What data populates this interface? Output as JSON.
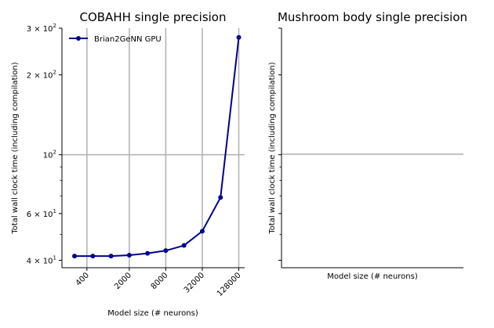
{
  "chart_data": [
    {
      "type": "line",
      "title": "COBAHH single precision",
      "xlabel": "Model size (# neurons)",
      "ylabel": "Total wall clock time (including compilation)",
      "xscale": "log",
      "yscale": "log",
      "xlim": [
        155,
        160000
      ],
      "ylim": [
        37.5,
        300
      ],
      "grid": "major",
      "x_ticks": [
        400,
        2000,
        8000,
        32000,
        128000
      ],
      "x_tick_labels": [
        "400",
        "2000",
        "8000",
        "32000",
        "128000"
      ],
      "y_ticks": [
        40,
        60,
        100,
        200,
        300
      ],
      "y_tick_labels": [
        {
          "base": "4",
          "cross": true,
          "exp": "1"
        },
        {
          "base": "6",
          "cross": true,
          "exp": "1"
        },
        {
          "base": "10",
          "cross": false,
          "exp": "2"
        },
        {
          "base": "2",
          "cross": true,
          "exp": "2"
        },
        {
          "base": "3",
          "cross": true,
          "exp": "2"
        }
      ],
      "legend": {
        "placement": "upper-left"
      },
      "series": [
        {
          "name": "Brian2GeNN GPU",
          "color": "#00008b",
          "x": [
            250,
            500,
            1000,
            2000,
            4000,
            8000,
            16000,
            32000,
            64000,
            128000
          ],
          "values": [
            41.5,
            41.5,
            41.5,
            41.8,
            42.5,
            43.5,
            45.5,
            51.5,
            69,
            277
          ]
        }
      ]
    },
    {
      "type": "line",
      "title": "Mushroom body single precision",
      "xlabel": "Model size (# neurons)",
      "ylabel": "Total wall clock time (including compilation)",
      "xscale": "log",
      "yscale": "log",
      "ylim": [
        37.5,
        300
      ],
      "grid": "major",
      "series": []
    }
  ]
}
